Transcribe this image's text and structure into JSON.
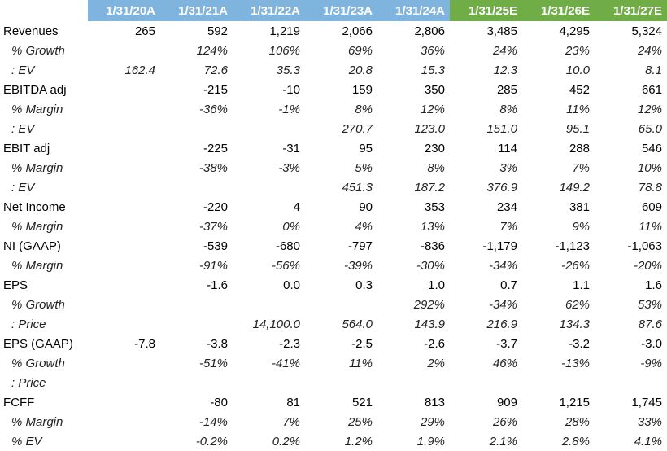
{
  "header": {
    "columns": [
      "1/31/20A",
      "1/31/21A",
      "1/31/22A",
      "1/31/23A",
      "1/31/24A",
      "1/31/25E",
      "1/31/26E",
      "1/31/27E"
    ],
    "column_kinds": [
      "actual",
      "actual",
      "actual",
      "actual",
      "actual",
      "estimate",
      "estimate",
      "estimate"
    ]
  },
  "colors": {
    "actual_header": "#7fb4de",
    "estimate_header": "#70ad47",
    "header_text": "#ffffff"
  },
  "rows": [
    {
      "label": "Revenues",
      "style": "main",
      "values": [
        "265",
        "592",
        "1,219",
        "2,066",
        "2,806",
        "3,485",
        "4,295",
        "5,324"
      ]
    },
    {
      "label": "% Growth",
      "style": "sub",
      "values": [
        "",
        "124%",
        "106%",
        "69%",
        "36%",
        "24%",
        "23%",
        "24%"
      ]
    },
    {
      "label": ": EV",
      "style": "sub",
      "values": [
        "162.4",
        "72.6",
        "35.3",
        "20.8",
        "15.3",
        "12.3",
        "10.0",
        "8.1"
      ]
    },
    {
      "label": "EBITDA adj",
      "style": "main",
      "values": [
        "",
        "-215",
        "-10",
        "159",
        "350",
        "285",
        "452",
        "661"
      ]
    },
    {
      "label": "% Margin",
      "style": "sub",
      "values": [
        "",
        "-36%",
        "-1%",
        "8%",
        "12%",
        "8%",
        "11%",
        "12%"
      ]
    },
    {
      "label": ": EV",
      "style": "sub",
      "values": [
        "",
        "",
        "",
        "270.7",
        "123.0",
        "151.0",
        "95.1",
        "65.0"
      ]
    },
    {
      "label": "EBIT adj",
      "style": "main",
      "values": [
        "",
        "-225",
        "-31",
        "95",
        "230",
        "114",
        "288",
        "546"
      ]
    },
    {
      "label": "% Margin",
      "style": "sub",
      "values": [
        "",
        "-38%",
        "-3%",
        "5%",
        "8%",
        "3%",
        "7%",
        "10%"
      ]
    },
    {
      "label": ": EV",
      "style": "sub",
      "values": [
        "",
        "",
        "",
        "451.3",
        "187.2",
        "376.9",
        "149.2",
        "78.8"
      ]
    },
    {
      "label": "Net Income",
      "style": "main",
      "values": [
        "",
        "-220",
        "4",
        "90",
        "353",
        "234",
        "381",
        "609"
      ]
    },
    {
      "label": "% Margin",
      "style": "sub",
      "values": [
        "",
        "-37%",
        "0%",
        "4%",
        "13%",
        "7%",
        "9%",
        "11%"
      ]
    },
    {
      "label": "NI (GAAP)",
      "style": "main",
      "values": [
        "",
        "-539",
        "-680",
        "-797",
        "-836",
        "-1,179",
        "-1,123",
        "-1,063"
      ]
    },
    {
      "label": "% Margin",
      "style": "sub",
      "values": [
        "",
        "-91%",
        "-56%",
        "-39%",
        "-30%",
        "-34%",
        "-26%",
        "-20%"
      ]
    },
    {
      "label": "EPS",
      "style": "main",
      "values": [
        "",
        "-1.6",
        "0.0",
        "0.3",
        "1.0",
        "0.7",
        "1.1",
        "1.6"
      ]
    },
    {
      "label": "% Growth",
      "style": "sub",
      "values": [
        "",
        "",
        "",
        "",
        "292%",
        "-34%",
        "62%",
        "53%"
      ]
    },
    {
      "label": ": Price",
      "style": "sub",
      "values": [
        "",
        "",
        "14,100.0",
        "564.0",
        "143.9",
        "216.9",
        "134.3",
        "87.6"
      ]
    },
    {
      "label": "EPS (GAAP)",
      "style": "main",
      "values": [
        "-7.8",
        "-3.8",
        "-2.3",
        "-2.5",
        "-2.6",
        "-3.7",
        "-3.2",
        "-3.0"
      ]
    },
    {
      "label": "% Growth",
      "style": "sub",
      "values": [
        "",
        "-51%",
        "-41%",
        "11%",
        "2%",
        "46%",
        "-13%",
        "-9%"
      ]
    },
    {
      "label": ": Price",
      "style": "sub",
      "values": [
        "",
        "",
        "",
        "",
        "",
        "",
        "",
        ""
      ]
    },
    {
      "label": "FCFF",
      "style": "main",
      "values": [
        "",
        "-80",
        "81",
        "521",
        "813",
        "909",
        "1,215",
        "1,745"
      ]
    },
    {
      "label": "% Margin",
      "style": "sub",
      "values": [
        "",
        "-14%",
        "7%",
        "25%",
        "29%",
        "26%",
        "28%",
        "33%"
      ]
    },
    {
      "label": "% EV",
      "style": "sub",
      "values": [
        "",
        "-0.2%",
        "0.2%",
        "1.2%",
        "1.9%",
        "2.1%",
        "2.8%",
        "4.1%"
      ]
    }
  ]
}
